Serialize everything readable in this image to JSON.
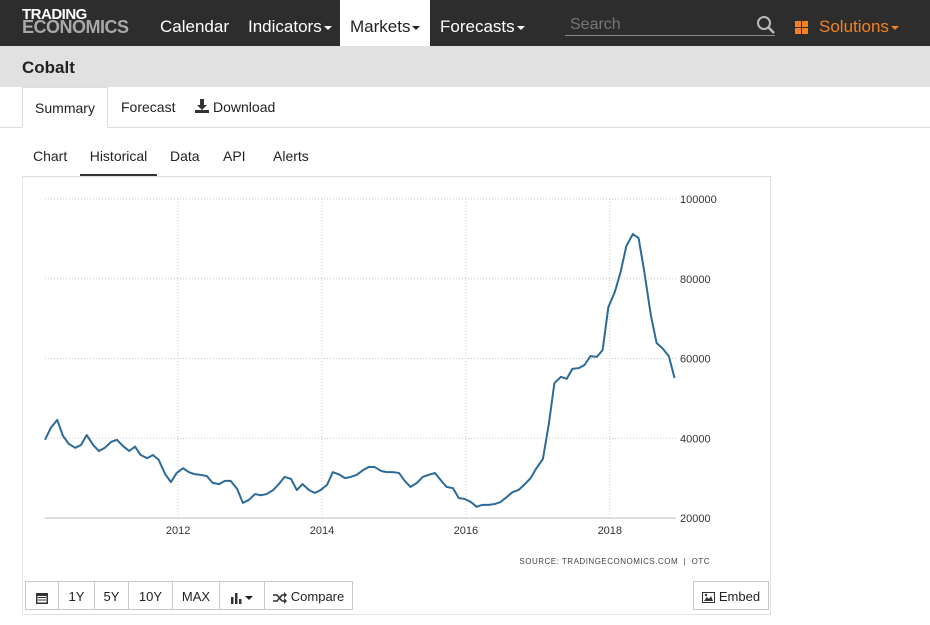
{
  "header": {
    "logo": [
      "TRADING",
      "ECONOMICS"
    ],
    "nav": [
      "Calendar",
      "Indicators",
      "Markets",
      "Forecasts"
    ],
    "search_placeholder": "Search",
    "solutions": "Solutions"
  },
  "page_title": "Cobalt",
  "tabs": [
    "Summary",
    "Forecast",
    "Download"
  ],
  "sub_tabs": [
    "Chart",
    "Historical",
    "Data",
    "API",
    "Alerts"
  ],
  "chart_data": {
    "type": "line",
    "x": [
      2010.15,
      2010.23,
      2010.32,
      2010.4,
      2010.48,
      2010.57,
      2010.65,
      2010.73,
      2010.82,
      2010.9,
      2010.98,
      2011.07,
      2011.15,
      2011.23,
      2011.32,
      2011.4,
      2011.48,
      2011.57,
      2011.65,
      2011.73,
      2011.82,
      2011.9,
      2011.98,
      2012.07,
      2012.15,
      2012.23,
      2012.32,
      2012.4,
      2012.48,
      2012.57,
      2012.65,
      2012.73,
      2012.82,
      2012.9,
      2012.98,
      2013.07,
      2013.15,
      2013.23,
      2013.32,
      2013.4,
      2013.48,
      2013.57,
      2013.65,
      2013.73,
      2013.82,
      2013.9,
      2013.98,
      2014.07,
      2014.15,
      2014.23,
      2014.32,
      2014.4,
      2014.48,
      2014.57,
      2014.65,
      2014.73,
      2014.82,
      2014.9,
      2014.98,
      2015.07,
      2015.15,
      2015.23,
      2015.32,
      2015.4,
      2015.48,
      2015.57,
      2015.65,
      2015.73,
      2015.82,
      2015.9,
      2015.98,
      2016.07,
      2016.15,
      2016.23,
      2016.32,
      2016.4,
      2016.48,
      2016.57,
      2016.65,
      2016.73,
      2016.82,
      2016.9,
      2016.98,
      2017.07,
      2017.15,
      2017.23,
      2017.32,
      2017.4,
      2017.48,
      2017.57,
      2017.65,
      2017.73,
      2017.82,
      2017.9,
      2017.98,
      2018.07,
      2018.15,
      2018.23,
      2018.32,
      2018.4,
      2018.48,
      2018.57,
      2018.65,
      2018.73,
      2018.82,
      2018.9
    ],
    "values": [
      39600,
      42600,
      44600,
      40600,
      38600,
      37600,
      38300,
      40800,
      38300,
      36800,
      37600,
      39100,
      39600,
      38100,
      36800,
      37900,
      35800,
      35000,
      35800,
      34600,
      31000,
      29000,
      31300,
      32500,
      31500,
      31000,
      30800,
      30500,
      28800,
      28500,
      29300,
      29300,
      27300,
      23800,
      24500,
      26000,
      25700,
      26000,
      27000,
      28500,
      30300,
      29800,
      27000,
      28500,
      27000,
      26300,
      27000,
      28300,
      31500,
      31000,
      30000,
      30300,
      30800,
      32000,
      32800,
      32800,
      31800,
      31500,
      31500,
      31300,
      29300,
      27800,
      28800,
      30300,
      30800,
      31300,
      29500,
      27800,
      27500,
      25000,
      24800,
      24000,
      22800,
      23300,
      23300,
      23500,
      24000,
      25300,
      26500,
      27000,
      28500,
      30000,
      32500,
      34800,
      43300,
      53800,
      55400,
      54900,
      57400,
      57600,
      58400,
      60600,
      60400,
      62100,
      72900,
      76700,
      81700,
      88200,
      91200,
      90200,
      81700,
      70900,
      63900,
      62600,
      60600,
      55100
    ],
    "color": "#2b6a99",
    "xlim": [
      2010.15,
      2018.92
    ],
    "xticks": [
      2012,
      2014,
      2016,
      2018
    ],
    "ylim": [
      20000,
      100000
    ],
    "yticks": [
      20000,
      40000,
      60000,
      80000,
      100000
    ],
    "grid": true,
    "source": "SOURCE: TRADINGECONOMICS.COM  |  OTC"
  },
  "range_buttons": [
    "1Y",
    "5Y",
    "10Y",
    "MAX"
  ],
  "compare": "Compare",
  "embed": "Embed"
}
